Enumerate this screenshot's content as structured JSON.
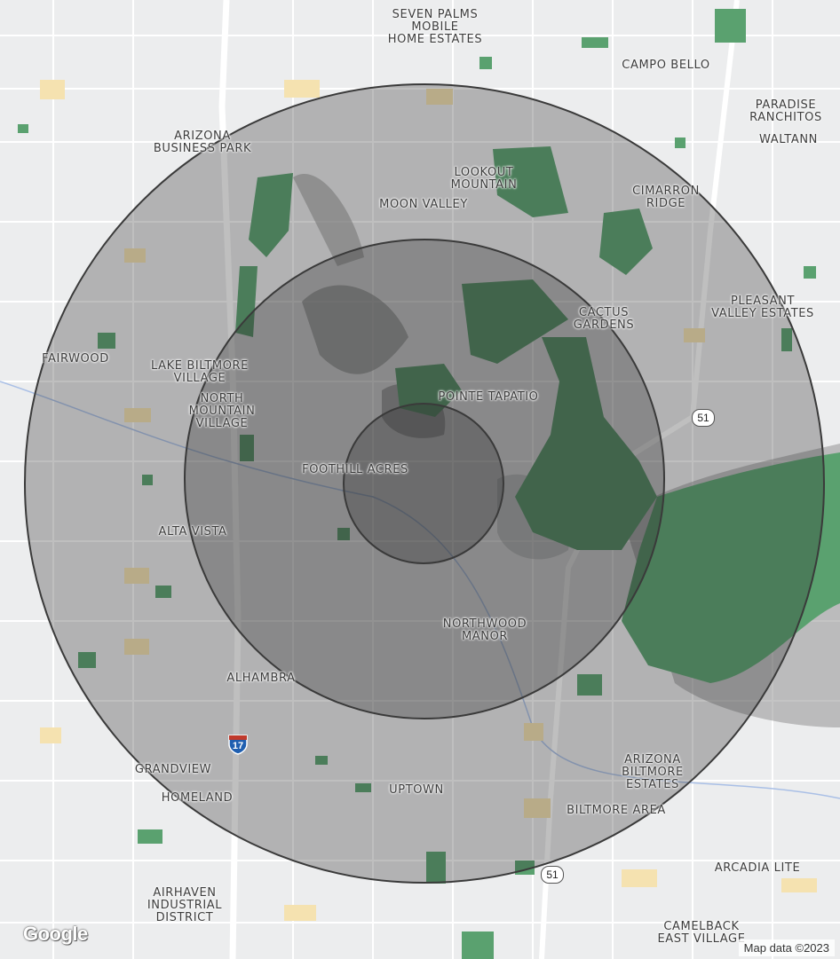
{
  "map": {
    "labels": [
      {
        "id": "seven-palms",
        "text": "SEVEN PALMS\nMOBILE\nHOME ESTATES"
      },
      {
        "id": "campo-bello",
        "text": "CAMPO BELLO"
      },
      {
        "id": "paradise-ranchitos",
        "text": "PARADISE\nRANCHITOS"
      },
      {
        "id": "waltann",
        "text": "WALTANN"
      },
      {
        "id": "arizona-business-park",
        "text": "ARIZONA\nBUSINESS PARK"
      },
      {
        "id": "lookout-mountain",
        "text": "LOOKOUT\nMOUNTAIN"
      },
      {
        "id": "moon-valley",
        "text": "MOON VALLEY"
      },
      {
        "id": "cimarron-ridge",
        "text": "CIMARRON\nRIDGE"
      },
      {
        "id": "pleasant-valley-estates",
        "text": "PLEASANT\nVALLEY ESTATES"
      },
      {
        "id": "cactus-gardens",
        "text": "CACTUS\nGARDENS"
      },
      {
        "id": "fairwood",
        "text": "FAIRWOOD"
      },
      {
        "id": "lake-biltmore-village",
        "text": "LAKE BILTMORE\nVILLAGE"
      },
      {
        "id": "north-mountain-village",
        "text": "NORTH\nMOUNTAIN\nVILLAGE"
      },
      {
        "id": "pointe-tapatio",
        "text": "POINTE TAPATIO"
      },
      {
        "id": "foothill-acres",
        "text": "FOOTHILL ACRES"
      },
      {
        "id": "alta-vista",
        "text": "ALTA VISTA"
      },
      {
        "id": "northwood-manor",
        "text": "NORTHWOOD\nMANOR"
      },
      {
        "id": "alhambra",
        "text": "ALHAMBRA"
      },
      {
        "id": "grandview",
        "text": "GRANDVIEW"
      },
      {
        "id": "homeland",
        "text": "HOMELAND"
      },
      {
        "id": "uptown",
        "text": "UPTOWN"
      },
      {
        "id": "arizona-biltmore-estates",
        "text": "ARIZONA\nBILTMORE\nESTATES"
      },
      {
        "id": "biltmore-area",
        "text": "BILTMORE AREA"
      },
      {
        "id": "arcadia-lite",
        "text": "ARCADIA LITE"
      },
      {
        "id": "airhaven-industrial-district",
        "text": "AIRHAVEN\nINDUSTRIAL\nDISTRICT"
      },
      {
        "id": "camelback-east-village",
        "text": "CAMELBACK\nEAST VILLAGE"
      }
    ],
    "shields": [
      {
        "id": "sr51-north",
        "type": "state",
        "text": "51"
      },
      {
        "id": "sr51-south",
        "type": "state",
        "text": "51"
      },
      {
        "id": "i17",
        "type": "interstate",
        "text": "17"
      }
    ],
    "radius_rings": 3,
    "colors": {
      "background": "#ecedee",
      "park": "#5aa16f",
      "ring_fill": "#2b2b2b",
      "ring_stroke": "#3a3a3a",
      "road": "#ffffff",
      "highway": "#fbe7a8"
    }
  },
  "branding": {
    "logo": "Google",
    "attribution": "Map data ©2023"
  }
}
